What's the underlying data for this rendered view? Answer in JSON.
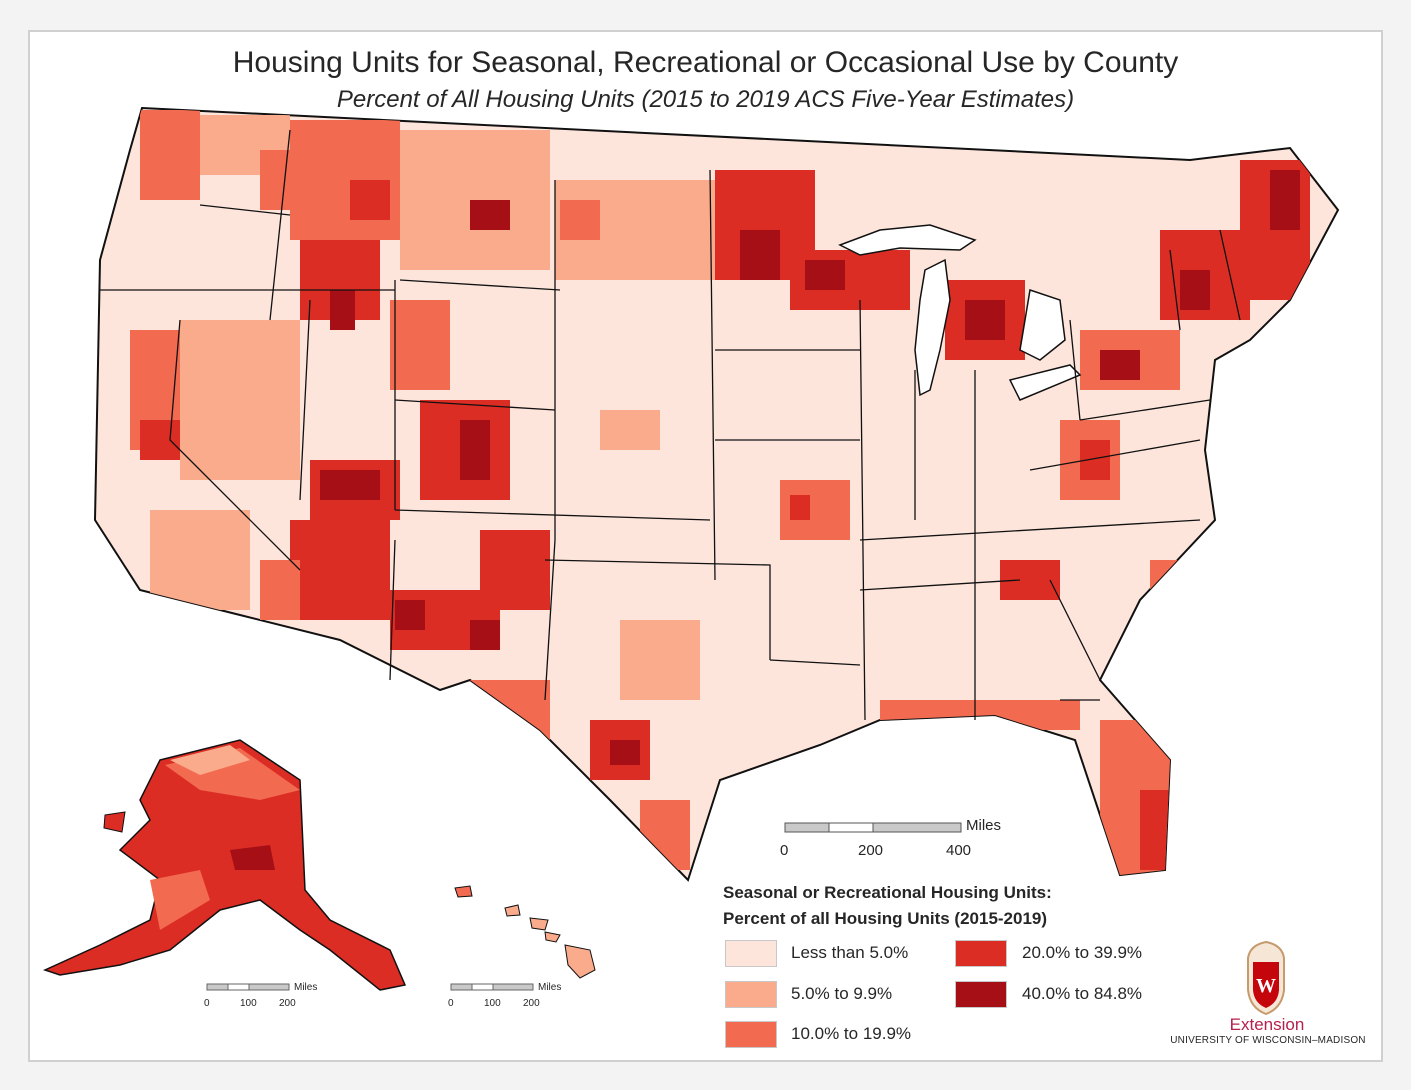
{
  "title": "Housing Units for Seasonal, Recreational or Occasional Use by County",
  "subtitle": "Percent of All Housing Units (2015 to 2019 ACS Five-Year Estimates)",
  "legend": {
    "title_line1": "Seasonal or Recreational Housing Units:",
    "title_line2": "Percent of all Housing Units (2015-2019)",
    "classes": [
      {
        "label": "Less than 5.0%",
        "color": "#fde5dc"
      },
      {
        "label": "5.0% to 9.9%",
        "color": "#f9ab8c"
      },
      {
        "label": "10.0% to 19.9%",
        "color": "#f26a4f"
      },
      {
        "label": "20.0% to 39.9%",
        "color": "#dc2d25"
      },
      {
        "label": "40.0% to 84.8%",
        "color": "#a50f15"
      }
    ]
  },
  "scale_main": {
    "unit": "Miles",
    "ticks": [
      "0",
      "200",
      "400"
    ]
  },
  "scale_alaska": {
    "unit": "Miles",
    "ticks": [
      "0",
      "100",
      "200"
    ]
  },
  "scale_hawaii": {
    "unit": "Miles",
    "ticks": [
      "0",
      "100",
      "200"
    ]
  },
  "logo": {
    "org": "Extension",
    "university": "UNIVERSITY OF WISCONSIN–MADISON",
    "emblem": "wisconsin-crest-icon",
    "color": "#b5204f"
  }
}
